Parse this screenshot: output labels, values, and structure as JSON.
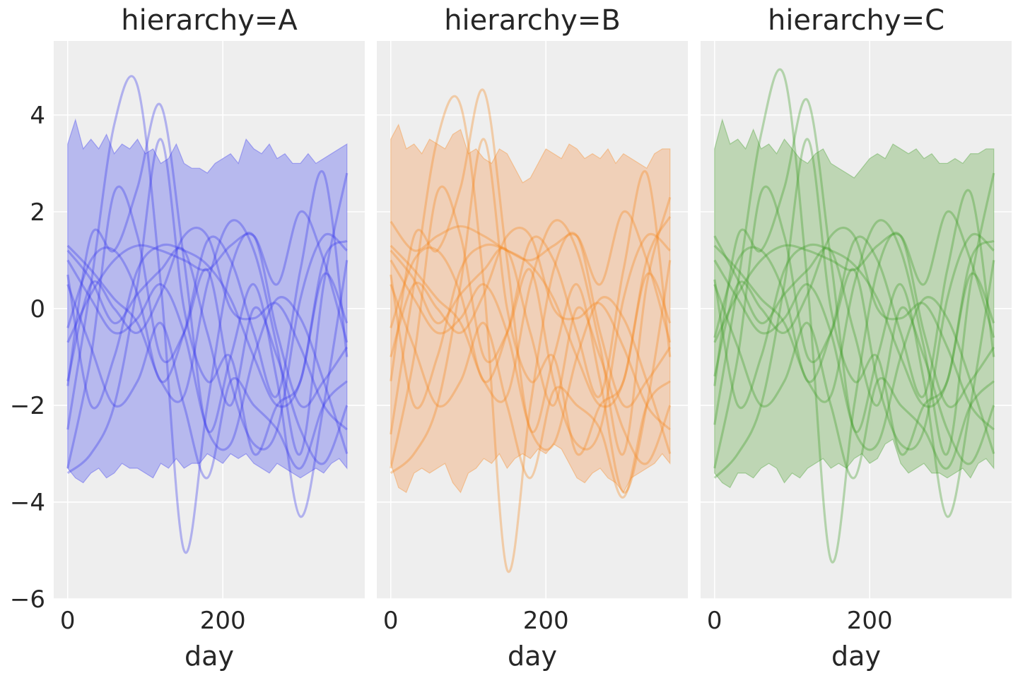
{
  "chart_data": {
    "type": "line",
    "ylim": [
      -6,
      5.53
    ],
    "xlim": [
      -18,
      383
    ],
    "yticks": [
      -6,
      -4,
      -2,
      0,
      2,
      4
    ],
    "xticks": [
      0,
      200
    ],
    "xlabel": "day",
    "band_step": 10,
    "curve_step": 30,
    "panels": [
      {
        "title": "hierarchy=A",
        "color": "#3333ee",
        "fill": "#b7b9ee",
        "upper": [
          3.4,
          3.9,
          3.3,
          3.5,
          3.3,
          3.6,
          3.2,
          3.4,
          3.3,
          3.5,
          3.2,
          3.3,
          3.0,
          3.1,
          3.4,
          3.0,
          2.9,
          2.9,
          2.8,
          3.0,
          3.1,
          3.2,
          3.0,
          3.5,
          3.3,
          3.2,
          3.4,
          3.1,
          3.2,
          3.0,
          3.0,
          3.2,
          3.0,
          3.1,
          3.2,
          3.3,
          3.4
        ],
        "lower": [
          -3.3,
          -3.5,
          -3.6,
          -3.4,
          -3.3,
          -3.5,
          -3.4,
          -3.2,
          -3.3,
          -3.3,
          -3.4,
          -3.5,
          -3.2,
          -3.3,
          -3.1,
          -3.3,
          -3.2,
          -3.2,
          -3.0,
          -3.1,
          -3.2,
          -3.0,
          -3.1,
          -3.0,
          -3.2,
          -3.3,
          -3.4,
          -3.2,
          -3.3,
          -3.4,
          -3.5,
          -3.4,
          -3.3,
          -3.4,
          -3.2,
          -3.1,
          -3.3
        ],
        "curves": [
          [
            -2.5,
            0.5,
            3.8,
            4.6,
            0.5,
            -5.0,
            -2.0,
            0.8,
            1.5,
            -0.5,
            -2.0,
            -1.5,
            -0.8
          ],
          [
            -1.6,
            1.5,
            1.2,
            2.5,
            4.2,
            1.0,
            -2.5,
            -1.0,
            0.5,
            -1.5,
            -4.3,
            -2.0,
            1.0
          ],
          [
            1.3,
            0.8,
            0.2,
            -0.3,
            -1.5,
            -1.8,
            0.5,
            1.8,
            1.2,
            -0.8,
            -3.0,
            0.5,
            2.8
          ],
          [
            0.7,
            -2.0,
            -1.0,
            0.8,
            1.3,
            1.2,
            0.9,
            0.2,
            -1.0,
            -2.0,
            -1.5,
            1.0,
            1.4
          ],
          [
            -0.4,
            1.0,
            1.2,
            0.3,
            -1.5,
            -0.5,
            1.4,
            1.0,
            -0.5,
            -1.8,
            0.8,
            2.8,
            -1.0
          ],
          [
            1.0,
            0.2,
            -0.5,
            -0.2,
            0.5,
            -0.5,
            -2.5,
            -2.8,
            -1.0,
            0.2,
            -0.2,
            -1.5,
            -3.0
          ],
          [
            -0.7,
            0.3,
            1.0,
            1.3,
            1.2,
            1.0,
            0.8,
            1.3,
            1.5,
            0.5,
            2.0,
            1.0,
            -0.7
          ],
          [
            -3.3,
            -1.0,
            2.4,
            1.5,
            -1.0,
            -0.5,
            0.8,
            -1.5,
            -2.8,
            -2.5,
            0.2,
            1.5,
            1.2
          ],
          [
            1.2,
            0.6,
            -0.3,
            0.3,
            0.8,
            1.2,
            -0.5,
            -2.0,
            0.0,
            -1.0,
            -2.5,
            -3.2,
            -2.0
          ],
          [
            -1.5,
            0.5,
            0.0,
            -0.5,
            0.3,
            1.5,
            1.5,
            0.0,
            -0.2,
            0.1,
            -0.8,
            -2.0,
            -2.5
          ],
          [
            -3.4,
            -3.0,
            -2.0,
            0.5,
            3.5,
            0.0,
            -1.5,
            -1.0,
            -3.0,
            -2.0,
            -1.5,
            0.7,
            -0.3
          ],
          [
            0.5,
            -0.8,
            -2.0,
            -1.5,
            -0.3,
            -2.0,
            -3.5,
            -1.5,
            -2.0,
            -2.5,
            -3.3,
            -2.0,
            -1.5
          ]
        ]
      },
      {
        "title": "hierarchy=B",
        "color": "#f58518",
        "fill": "#f0d0b8",
        "upper": [
          3.5,
          3.8,
          3.3,
          3.4,
          3.2,
          3.5,
          3.4,
          3.3,
          3.6,
          3.7,
          3.2,
          3.3,
          3.1,
          3.0,
          3.3,
          3.2,
          2.9,
          2.6,
          2.7,
          3.0,
          3.3,
          3.2,
          3.1,
          3.4,
          3.3,
          3.1,
          3.2,
          3.1,
          3.3,
          3.0,
          3.2,
          3.1,
          3.0,
          2.9,
          3.2,
          3.3,
          3.3
        ],
        "lower": [
          -3.2,
          -3.7,
          -3.8,
          -3.4,
          -3.3,
          -3.4,
          -3.3,
          -3.2,
          -3.6,
          -3.8,
          -3.4,
          -3.3,
          -3.1,
          -3.2,
          -3.0,
          -3.3,
          -3.1,
          -3.0,
          -3.1,
          -2.9,
          -3.0,
          -2.8,
          -2.9,
          -3.2,
          -3.5,
          -3.6,
          -3.4,
          -3.3,
          -3.5,
          -3.6,
          -3.8,
          -3.5,
          -3.4,
          -3.3,
          -3.2,
          -3.0,
          -3.2
        ],
        "curves": [
          [
            -2.6,
            0.5,
            3.5,
            4.2,
            0.5,
            -5.4,
            -2.0,
            0.8,
            1.5,
            -0.5,
            -2.0,
            -1.5,
            -0.8
          ],
          [
            -1.5,
            1.5,
            1.2,
            2.5,
            4.5,
            1.0,
            -2.5,
            -1.0,
            0.5,
            -1.5,
            -3.8,
            -2.0,
            1.0
          ],
          [
            1.3,
            0.8,
            0.2,
            -0.3,
            -1.5,
            -1.8,
            0.5,
            1.8,
            1.2,
            -0.8,
            -3.0,
            0.5,
            2.3
          ],
          [
            0.7,
            -2.0,
            -1.0,
            0.8,
            1.3,
            1.2,
            0.9,
            0.2,
            -1.0,
            -2.0,
            -1.5,
            1.0,
            1.9
          ],
          [
            -0.4,
            1.0,
            1.2,
            0.3,
            -1.5,
            -0.5,
            1.4,
            1.0,
            -0.5,
            -1.8,
            0.8,
            2.8,
            -1.0
          ],
          [
            1.0,
            0.2,
            -0.5,
            -0.2,
            0.5,
            -0.5,
            -2.5,
            -2.8,
            -1.0,
            0.2,
            -0.2,
            -1.5,
            -3.0
          ],
          [
            1.8,
            1.2,
            1.5,
            1.7,
            1.5,
            1.2,
            1.0,
            1.3,
            1.5,
            0.5,
            2.0,
            1.0,
            -0.7
          ],
          [
            -3.3,
            -1.0,
            2.4,
            1.5,
            -1.0,
            -0.5,
            0.8,
            -1.5,
            -2.8,
            -2.5,
            0.2,
            1.5,
            1.2
          ],
          [
            1.2,
            0.6,
            -0.3,
            0.3,
            0.8,
            1.2,
            -0.5,
            -2.0,
            0.0,
            -1.0,
            -2.5,
            -3.2,
            -2.0
          ],
          [
            -1.0,
            0.5,
            0.0,
            -0.5,
            0.3,
            1.5,
            1.5,
            0.0,
            -0.2,
            0.1,
            -0.8,
            -2.0,
            -2.5
          ],
          [
            -3.4,
            -3.0,
            -2.0,
            0.5,
            3.5,
            0.0,
            -1.5,
            -1.0,
            -3.0,
            -2.0,
            -1.5,
            0.7,
            -0.3
          ],
          [
            0.5,
            -0.8,
            -2.0,
            -1.5,
            -0.3,
            -2.0,
            -3.5,
            -1.7,
            -2.0,
            -2.5,
            -3.9,
            -2.0,
            -1.5
          ]
        ]
      },
      {
        "title": "hierarchy=C",
        "color": "#3a9a22",
        "fill": "#bed6b4",
        "upper": [
          3.3,
          3.9,
          3.4,
          3.5,
          3.3,
          3.7,
          3.3,
          3.4,
          3.2,
          3.5,
          3.3,
          3.1,
          3.0,
          3.2,
          3.3,
          3.0,
          2.9,
          2.8,
          2.7,
          2.9,
          3.1,
          3.2,
          3.1,
          3.4,
          3.3,
          3.2,
          3.3,
          3.1,
          3.2,
          3.0,
          3.0,
          3.1,
          3.0,
          3.2,
          3.2,
          3.3,
          3.3
        ],
        "lower": [
          -3.4,
          -3.6,
          -3.7,
          -3.4,
          -3.4,
          -3.5,
          -3.3,
          -3.2,
          -3.3,
          -3.6,
          -3.4,
          -3.5,
          -3.3,
          -3.2,
          -3.1,
          -3.3,
          -3.2,
          -3.3,
          -3.1,
          -3.0,
          -3.2,
          -3.1,
          -2.8,
          -2.7,
          -3.2,
          -3.4,
          -3.3,
          -3.2,
          -3.4,
          -3.4,
          -3.5,
          -3.4,
          -3.3,
          -3.5,
          -3.2,
          -3.1,
          -3.3
        ],
        "curves": [
          [
            -2.4,
            0.5,
            3.6,
            4.8,
            0.5,
            -5.2,
            -2.0,
            0.8,
            1.5,
            -0.5,
            -2.0,
            -1.5,
            -0.8
          ],
          [
            -1.6,
            1.5,
            1.2,
            2.5,
            4.3,
            1.0,
            -2.5,
            -1.0,
            0.5,
            -1.5,
            -4.3,
            -2.0,
            1.0
          ],
          [
            1.3,
            0.8,
            0.2,
            -0.3,
            -1.5,
            -1.8,
            0.5,
            1.8,
            1.2,
            -0.8,
            -3.0,
            0.5,
            2.8
          ],
          [
            0.6,
            -2.0,
            -1.0,
            0.8,
            1.3,
            1.2,
            0.9,
            0.2,
            -1.0,
            -2.0,
            -1.5,
            1.0,
            1.4
          ],
          [
            -0.6,
            1.0,
            1.2,
            0.3,
            -1.5,
            -0.5,
            1.4,
            1.0,
            -0.5,
            -1.8,
            0.8,
            2.4,
            -1.0
          ],
          [
            1.0,
            0.2,
            -0.5,
            -0.2,
            0.5,
            -0.5,
            -2.5,
            -2.8,
            -1.0,
            0.2,
            -0.2,
            -1.5,
            -3.0
          ],
          [
            -0.7,
            0.3,
            1.0,
            1.3,
            1.2,
            1.0,
            0.8,
            1.3,
            1.5,
            0.5,
            2.0,
            1.0,
            -0.6
          ],
          [
            -3.3,
            -1.0,
            2.4,
            1.5,
            -1.0,
            -0.5,
            0.8,
            -1.5,
            -2.8,
            -2.5,
            0.2,
            1.5,
            1.2
          ],
          [
            1.5,
            0.6,
            -0.3,
            0.3,
            0.8,
            1.2,
            -0.5,
            -2.0,
            0.0,
            -1.0,
            -2.5,
            -3.2,
            -2.0
          ],
          [
            -1.4,
            0.5,
            0.0,
            -0.5,
            0.3,
            1.5,
            1.5,
            0.0,
            -0.2,
            0.1,
            -0.8,
            -2.0,
            -2.5
          ],
          [
            -3.5,
            -3.0,
            -2.0,
            0.5,
            3.5,
            0.0,
            -1.5,
            -1.0,
            -3.0,
            -2.0,
            -1.5,
            0.7,
            -0.3
          ],
          [
            0.5,
            -0.8,
            -2.0,
            -1.5,
            -0.3,
            -2.0,
            -3.5,
            -1.5,
            -2.0,
            -2.5,
            -3.3,
            -2.0,
            -1.5
          ]
        ]
      }
    ]
  }
}
